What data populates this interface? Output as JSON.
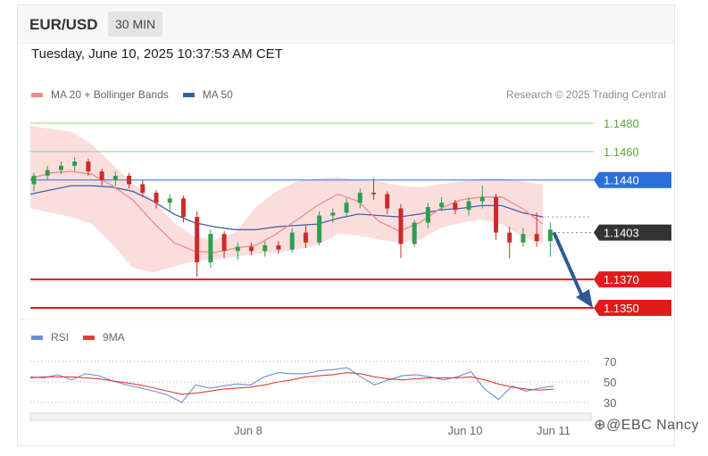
{
  "header": {
    "pair": "EUR/USD",
    "timeframe": "30 MIN"
  },
  "datetime": "Tuesday, June 10, 2025 10:37:53 AM CET",
  "legend": [
    {
      "label": "MA 20 + Bollinger Bands",
      "color": "#f08c8c"
    },
    {
      "label": "MA 50",
      "color": "#2f5f9e"
    }
  ],
  "credit": "Research © 2025 Trading Central",
  "rsi_legend": [
    {
      "label": "RSI",
      "color": "#6b8fd6"
    },
    {
      "label": "9MA",
      "color": "#e53b3b"
    }
  ],
  "watermark": "⊕@EBC Nancy",
  "colors": {
    "up": "#2e9e4c",
    "down": "#cc2b2b",
    "resistance": "#8fd07c",
    "pivot": "#2b6fd9",
    "support": "#e01b1b",
    "current": "#333333"
  },
  "chart_data": [
    {
      "type": "candlestick",
      "title": "EUR/USD 30 MIN",
      "xlabel": "",
      "ylabel": "",
      "x_ticks": [
        "Jun 8",
        "Jun 10",
        "Jun 11"
      ],
      "ylim": [
        1.134,
        1.149
      ],
      "price_levels": [
        {
          "label": "1.1480",
          "value": 1.148,
          "kind": "resistance"
        },
        {
          "label": "1.1460",
          "value": 1.146,
          "kind": "resistance"
        },
        {
          "label": "1.1440",
          "value": 1.144,
          "kind": "pivot"
        },
        {
          "label": "1.1403",
          "value": 1.1403,
          "kind": "current"
        },
        {
          "label": "1.1370",
          "value": 1.137,
          "kind": "support"
        },
        {
          "label": "1.1350",
          "value": 1.135,
          "kind": "support"
        }
      ],
      "series": [
        {
          "name": "MA 20 + Bollinger Bands"
        },
        {
          "name": "MA 50"
        }
      ],
      "ma20": [
        1.1441,
        1.1445,
        1.1446,
        1.1444,
        1.1436,
        1.1426,
        1.141,
        1.1396,
        1.139,
        1.1389,
        1.1392,
        1.1394,
        1.1402,
        1.1412,
        1.1422,
        1.143,
        1.1425,
        1.1411,
        1.1404,
        1.141,
        1.142,
        1.1426,
        1.1428,
        1.1428,
        1.142,
        1.1409
      ],
      "ma50": [
        1.143,
        1.1433,
        1.1436,
        1.1436,
        1.1435,
        1.1432,
        1.1425,
        1.1416,
        1.141,
        1.1407,
        1.1405,
        1.1405,
        1.1407,
        1.1408,
        1.1409,
        1.1413,
        1.1416,
        1.1415,
        1.1414,
        1.1416,
        1.1419,
        1.142,
        1.1422,
        1.1422,
        1.1417,
        1.1414
      ],
      "bb_upper": [
        1.1478,
        1.1476,
        1.1474,
        1.1465,
        1.1451,
        1.1438,
        1.1426,
        1.141,
        1.14,
        1.1398,
        1.1403,
        1.1421,
        1.1432,
        1.1439,
        1.1441,
        1.1442,
        1.144,
        1.1439,
        1.1436,
        1.1435,
        1.1437,
        1.1439,
        1.1441,
        1.1441,
        1.1439,
        1.1437
      ],
      "bb_lower": [
        1.142,
        1.1417,
        1.1414,
        1.1409,
        1.1395,
        1.1378,
        1.1375,
        1.1379,
        1.1383,
        1.1384,
        1.1386,
        1.1388,
        1.1389,
        1.1391,
        1.1394,
        1.1402,
        1.1401,
        1.1398,
        1.1396,
        1.1398,
        1.1406,
        1.141,
        1.1412,
        1.1409,
        1.14,
        1.1395
      ],
      "candles": [
        {
          "o": 1.1437,
          "h": 1.1445,
          "l": 1.1432,
          "c": 1.1443
        },
        {
          "o": 1.1443,
          "h": 1.145,
          "l": 1.144,
          "c": 1.1447
        },
        {
          "o": 1.1447,
          "h": 1.1453,
          "l": 1.1444,
          "c": 1.145
        },
        {
          "o": 1.145,
          "h": 1.1456,
          "l": 1.1446,
          "c": 1.1453
        },
        {
          "o": 1.1453,
          "h": 1.1455,
          "l": 1.1443,
          "c": 1.1446
        },
        {
          "o": 1.1446,
          "h": 1.1448,
          "l": 1.1436,
          "c": 1.144
        },
        {
          "o": 1.144,
          "h": 1.1446,
          "l": 1.1436,
          "c": 1.1443
        },
        {
          "o": 1.1443,
          "h": 1.1445,
          "l": 1.1434,
          "c": 1.1437
        },
        {
          "o": 1.1437,
          "h": 1.144,
          "l": 1.1428,
          "c": 1.1431
        },
        {
          "o": 1.1431,
          "h": 1.1433,
          "l": 1.142,
          "c": 1.1424
        },
        {
          "o": 1.1424,
          "h": 1.143,
          "l": 1.1418,
          "c": 1.1427
        },
        {
          "o": 1.1427,
          "h": 1.1429,
          "l": 1.141,
          "c": 1.1414
        },
        {
          "o": 1.1414,
          "h": 1.1418,
          "l": 1.1372,
          "c": 1.1382
        },
        {
          "o": 1.1382,
          "h": 1.1405,
          "l": 1.1378,
          "c": 1.1402
        },
        {
          "o": 1.1402,
          "h": 1.1404,
          "l": 1.1385,
          "c": 1.139
        },
        {
          "o": 1.139,
          "h": 1.1396,
          "l": 1.1384,
          "c": 1.1393
        },
        {
          "o": 1.1393,
          "h": 1.1396,
          "l": 1.1387,
          "c": 1.139
        },
        {
          "o": 1.139,
          "h": 1.1397,
          "l": 1.1386,
          "c": 1.1394
        },
        {
          "o": 1.1394,
          "h": 1.1397,
          "l": 1.1388,
          "c": 1.1391
        },
        {
          "o": 1.1391,
          "h": 1.1406,
          "l": 1.1389,
          "c": 1.1403
        },
        {
          "o": 1.1403,
          "h": 1.1408,
          "l": 1.1392,
          "c": 1.1396
        },
        {
          "o": 1.1396,
          "h": 1.1418,
          "l": 1.1394,
          "c": 1.1415
        },
        {
          "o": 1.1415,
          "h": 1.142,
          "l": 1.141,
          "c": 1.1417
        },
        {
          "o": 1.1417,
          "h": 1.1427,
          "l": 1.1414,
          "c": 1.1424
        },
        {
          "o": 1.1424,
          "h": 1.1434,
          "l": 1.142,
          "c": 1.1431
        },
        {
          "o": 1.1431,
          "h": 1.1441,
          "l": 1.1426,
          "c": 1.143
        },
        {
          "o": 1.143,
          "h": 1.1432,
          "l": 1.1416,
          "c": 1.142
        },
        {
          "o": 1.142,
          "h": 1.1423,
          "l": 1.1385,
          "c": 1.1395
        },
        {
          "o": 1.1395,
          "h": 1.1412,
          "l": 1.1393,
          "c": 1.141
        },
        {
          "o": 1.141,
          "h": 1.1424,
          "l": 1.1406,
          "c": 1.1421
        },
        {
          "o": 1.1421,
          "h": 1.1428,
          "l": 1.1418,
          "c": 1.1424
        },
        {
          "o": 1.1424,
          "h": 1.1426,
          "l": 1.1416,
          "c": 1.1419
        },
        {
          "o": 1.1419,
          "h": 1.1428,
          "l": 1.1415,
          "c": 1.1425
        },
        {
          "o": 1.1425,
          "h": 1.1436,
          "l": 1.142,
          "c": 1.1428
        },
        {
          "o": 1.1428,
          "h": 1.143,
          "l": 1.1398,
          "c": 1.1403
        },
        {
          "o": 1.1403,
          "h": 1.1407,
          "l": 1.1385,
          "c": 1.1396
        },
        {
          "o": 1.1396,
          "h": 1.1406,
          "l": 1.1393,
          "c": 1.1402
        },
        {
          "o": 1.1402,
          "h": 1.1417,
          "l": 1.1393,
          "c": 1.1397
        },
        {
          "o": 1.1397,
          "h": 1.141,
          "l": 1.1386,
          "c": 1.1405
        }
      ],
      "annotations": [
        "arrow from current price toward 1.1350"
      ]
    },
    {
      "type": "line",
      "title": "RSI",
      "xlabel": "",
      "ylabel": "",
      "y_ticks": [
        "70",
        "50",
        "30"
      ],
      "ylim": [
        20,
        80
      ],
      "series": [
        {
          "name": "RSI",
          "values": [
            55,
            54,
            57,
            52,
            58,
            56,
            51,
            47,
            44,
            41,
            37,
            30,
            47,
            44,
            46,
            48,
            47,
            55,
            59,
            58,
            58,
            61,
            62,
            64,
            55,
            47,
            52,
            56,
            57,
            55,
            52,
            55,
            60,
            43,
            33,
            46,
            41,
            44,
            46
          ]
        },
        {
          "name": "9MA",
          "values": [
            54,
            55,
            55,
            55,
            54,
            53,
            51,
            49,
            47,
            44,
            41,
            38,
            39,
            41,
            43,
            44,
            45,
            47,
            50,
            52,
            55,
            56,
            57,
            59,
            58,
            55,
            53,
            52,
            53,
            54,
            54,
            54,
            55,
            52,
            48,
            45,
            43,
            42,
            43
          ]
        }
      ]
    }
  ]
}
